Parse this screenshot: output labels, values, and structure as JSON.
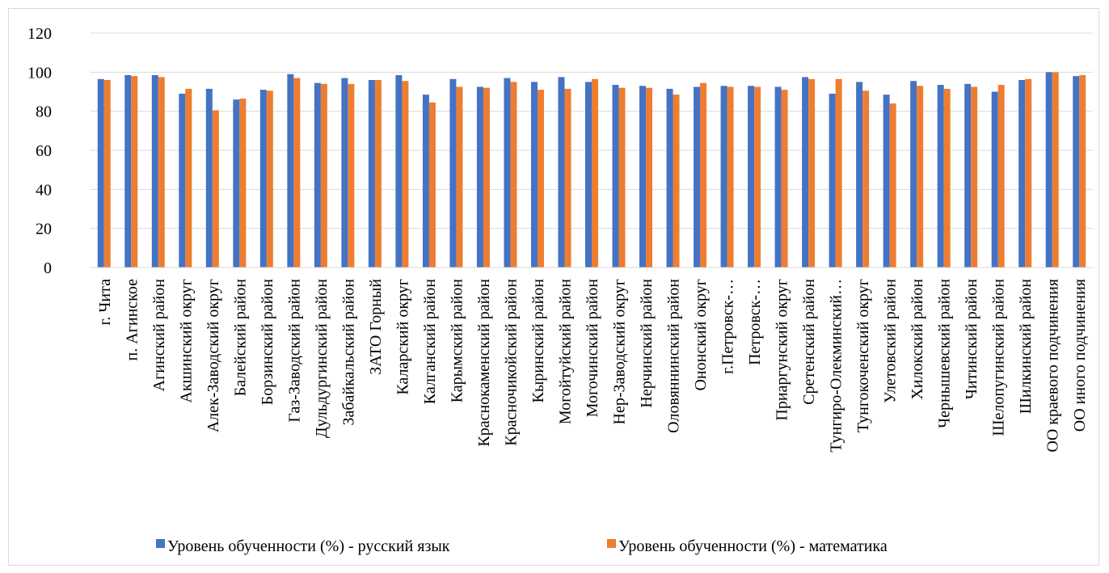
{
  "chart_data": {
    "type": "bar",
    "title": "",
    "xlabel": "",
    "ylabel": "",
    "ylim": [
      0,
      120
    ],
    "yticks": [
      0,
      20,
      40,
      60,
      80,
      100,
      120
    ],
    "grid": true,
    "legend_position": "bottom",
    "categories": [
      "г. Чита",
      "п. Агинское",
      "Агинский район",
      "Акшинский округ",
      "Алек-Заводский округ",
      "Балейский район",
      "Борзинский район",
      "Газ-Заводский район",
      "Дульдургинский район",
      "Забайкальский район",
      "ЗАТО Горный",
      "Каларский округ",
      "Калганский район",
      "Карымский район",
      "Краснокаменский район",
      "Красночикойский район",
      "Кыринский район",
      "Могойтуйский район",
      "Могочинский район",
      "Нер-Заводский округ",
      "Нерчинский район",
      "Оловяннинский район",
      "Ононский округ",
      "г.Петровск-…",
      "Петровск-…",
      "Приаргунский округ",
      "Сретенский район",
      "Тунгиро-Олекминский…",
      "Тунгокоченский округ",
      "Улетовский район",
      "Хилокский район",
      "Чернышевский район",
      "Читинский район",
      "Шелопугинский район",
      "Шилкинский район",
      "ОО краевого подчинения",
      "ОО иного подчинения"
    ],
    "series": [
      {
        "name": "Уровень обученности (%) - русский язык",
        "color": "#4472c4",
        "values": [
          96.5,
          98.5,
          98.5,
          89,
          91.5,
          86,
          91,
          99,
          94.5,
          97,
          96,
          98.5,
          88.5,
          96.5,
          92.5,
          97,
          95,
          97.5,
          95,
          93.5,
          93,
          91.5,
          92.5,
          93,
          93,
          92.5,
          97.5,
          89,
          95,
          88.5,
          95.5,
          93.5,
          94,
          90,
          96,
          100,
          98
        ]
      },
      {
        "name": "Уровень обученности (%) - математика",
        "color": "#ed7d31",
        "values": [
          96,
          98,
          97.5,
          91.5,
          80.5,
          86.5,
          90.5,
          97,
          94,
          94,
          96,
          95.5,
          84.5,
          92.5,
          92,
          95,
          91,
          91.5,
          96.5,
          92,
          92,
          88.5,
          94.5,
          92.5,
          92.5,
          91,
          96.5,
          96.5,
          90.5,
          84,
          93,
          91.5,
          92.5,
          93.5,
          96.5,
          100,
          98.5
        ]
      }
    ]
  }
}
